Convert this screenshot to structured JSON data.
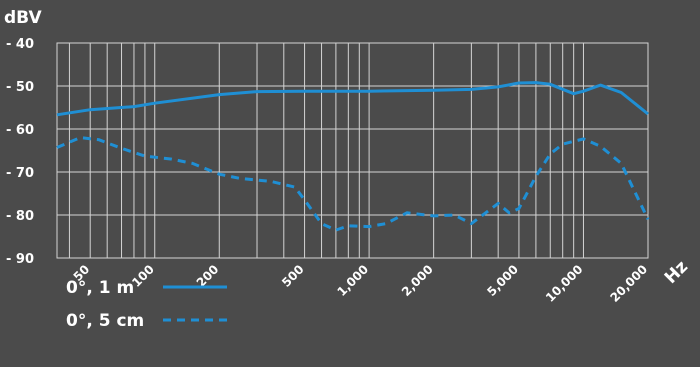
{
  "chart_data": {
    "type": "line",
    "ylabel": "dBV",
    "xunit": "Hz",
    "xscale": "log",
    "xlim": [
      35,
      20000
    ],
    "ylim": [
      -90,
      -40
    ],
    "yticks": [
      -40,
      -50,
      -60,
      -70,
      -80,
      -90
    ],
    "ytick_labels": [
      "- 40",
      "- 50",
      "- 60",
      "- 70",
      "- 80",
      "- 90"
    ],
    "xticks": [
      50,
      100,
      200,
      500,
      1000,
      2000,
      5000,
      10000,
      20000
    ],
    "xtick_labels": [
      "50",
      "100",
      "200",
      "500",
      "1,000",
      "2,000",
      "5,000",
      "10,000",
      "20,000"
    ],
    "grid": true,
    "legend_position": "bottom-left",
    "colors": {
      "background": "#4b4b4b",
      "grid": "#d4d4d4",
      "series": "#1f8fd4",
      "text": "#ffffff"
    },
    "series": [
      {
        "name": "0°, 1 m",
        "style": "solid",
        "x": [
          35,
          50,
          80,
          100,
          200,
          300,
          500,
          1000,
          2000,
          3000,
          4000,
          5000,
          6000,
          7000,
          9000,
          10000,
          12000,
          15000,
          20000
        ],
        "y": [
          -56.7,
          -55.5,
          -54.8,
          -54,
          -52,
          -51.3,
          -51.2,
          -51.2,
          -51,
          -50.8,
          -50.2,
          -49.3,
          -49.2,
          -49.6,
          -51.8,
          -51.2,
          -49.8,
          -51.5,
          -56.5
        ]
      },
      {
        "name": "0°, 5 cm",
        "style": "dashed",
        "x": [
          35,
          45,
          55,
          70,
          90,
          120,
          150,
          200,
          250,
          350,
          450,
          500,
          600,
          700,
          800,
          1000,
          1200,
          1500,
          2000,
          2500,
          3000,
          3500,
          4000,
          4500,
          5000,
          6000,
          7000,
          8000,
          10000,
          12000,
          15000,
          20000
        ],
        "y": [
          -64.3,
          -62,
          -62.5,
          -64.5,
          -66.3,
          -67,
          -68,
          -70.5,
          -71.5,
          -72.2,
          -73.5,
          -76.5,
          -82,
          -83.5,
          -82.5,
          -82.7,
          -82,
          -79.5,
          -80.2,
          -80,
          -82,
          -79.5,
          -77.3,
          -79.5,
          -78.5,
          -71,
          -65.8,
          -63.5,
          -62.3,
          -64,
          -68,
          -81
        ]
      }
    ]
  }
}
